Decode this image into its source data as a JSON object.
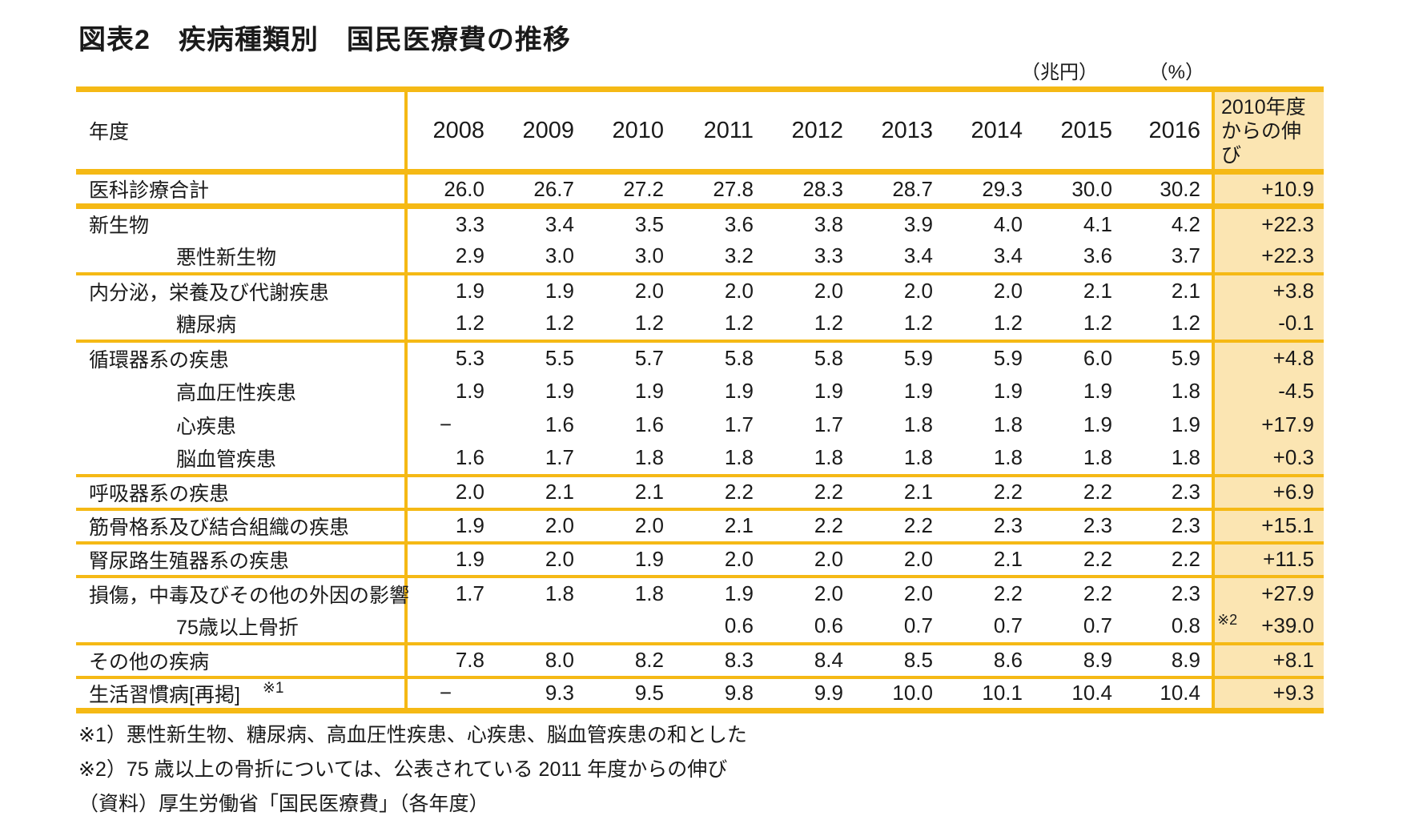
{
  "title": "図表2　疾病種類別　国民医療費の推移",
  "units": {
    "amount": "（兆円）",
    "percent": "（%）"
  },
  "table": {
    "header": {
      "year_label": "年度",
      "years": [
        "2008",
        "2009",
        "2010",
        "2011",
        "2012",
        "2013",
        "2014",
        "2015",
        "2016"
      ],
      "growth_lines": [
        "2010年度",
        "からの伸び"
      ]
    },
    "rows": [
      {
        "label": "医科診療合計",
        "indent": false,
        "values": [
          "26.0",
          "26.7",
          "27.2",
          "27.8",
          "28.3",
          "28.7",
          "29.3",
          "30.0",
          "30.2"
        ],
        "growth": "+10.9",
        "border": "thick"
      },
      {
        "label": "新生物",
        "indent": false,
        "values": [
          "3.3",
          "3.4",
          "3.5",
          "3.6",
          "3.8",
          "3.9",
          "4.0",
          "4.1",
          "4.2"
        ],
        "growth": "+22.3",
        "border": "none"
      },
      {
        "label": "悪性新生物",
        "indent": true,
        "values": [
          "2.9",
          "3.0",
          "3.0",
          "3.2",
          "3.3",
          "3.4",
          "3.4",
          "3.6",
          "3.7"
        ],
        "growth": "+22.3",
        "border": "med"
      },
      {
        "label": "内分泌，栄養及び代謝疾患",
        "indent": false,
        "values": [
          "1.9",
          "1.9",
          "2.0",
          "2.0",
          "2.0",
          "2.0",
          "2.0",
          "2.1",
          "2.1"
        ],
        "growth": "+3.8",
        "border": "none"
      },
      {
        "label": "糖尿病",
        "indent": true,
        "values": [
          "1.2",
          "1.2",
          "1.2",
          "1.2",
          "1.2",
          "1.2",
          "1.2",
          "1.2",
          "1.2"
        ],
        "growth": "-0.1",
        "border": "med"
      },
      {
        "label": "循環器系の疾患",
        "indent": false,
        "values": [
          "5.3",
          "5.5",
          "5.7",
          "5.8",
          "5.8",
          "5.9",
          "5.9",
          "6.0",
          "5.9"
        ],
        "growth": "+4.8",
        "border": "none"
      },
      {
        "label": "高血圧性疾患",
        "indent": true,
        "values": [
          "1.9",
          "1.9",
          "1.9",
          "1.9",
          "1.9",
          "1.9",
          "1.9",
          "1.9",
          "1.8"
        ],
        "growth": "-4.5",
        "border": "none"
      },
      {
        "label": "心疾患",
        "indent": true,
        "values": [
          "−",
          "1.6",
          "1.6",
          "1.7",
          "1.7",
          "1.8",
          "1.8",
          "1.9",
          "1.9"
        ],
        "growth": "+17.9",
        "border": "none"
      },
      {
        "label": "脳血管疾患",
        "indent": true,
        "values": [
          "1.6",
          "1.7",
          "1.8",
          "1.8",
          "1.8",
          "1.8",
          "1.8",
          "1.8",
          "1.8"
        ],
        "growth": "+0.3",
        "border": "med"
      },
      {
        "label": "呼吸器系の疾患",
        "indent": false,
        "values": [
          "2.0",
          "2.1",
          "2.1",
          "2.2",
          "2.2",
          "2.1",
          "2.2",
          "2.2",
          "2.3"
        ],
        "growth": "+6.9",
        "border": "med"
      },
      {
        "label": "筋骨格系及び結合組織の疾患",
        "indent": false,
        "values": [
          "1.9",
          "2.0",
          "2.0",
          "2.1",
          "2.2",
          "2.2",
          "2.3",
          "2.3",
          "2.3"
        ],
        "growth": "+15.1",
        "border": "med"
      },
      {
        "label": "腎尿路生殖器系の疾患",
        "indent": false,
        "values": [
          "1.9",
          "2.0",
          "1.9",
          "2.0",
          "2.0",
          "2.0",
          "2.1",
          "2.2",
          "2.2"
        ],
        "growth": "+11.5",
        "border": "med"
      },
      {
        "label": "損傷，中毒及びその他の外因の影響",
        "indent": false,
        "values": [
          "1.7",
          "1.8",
          "1.8",
          "1.9",
          "2.0",
          "2.0",
          "2.2",
          "2.2",
          "2.3"
        ],
        "growth": "+27.9",
        "border": "none"
      },
      {
        "label": "75歳以上骨折",
        "indent": true,
        "values": [
          "",
          "",
          "",
          "0.6",
          "0.6",
          "0.7",
          "0.7",
          "0.7",
          "0.8"
        ],
        "growth": "+39.0",
        "growth_note": "※2",
        "border": "med"
      },
      {
        "label": "その他の疾病",
        "indent": false,
        "values": [
          "7.8",
          "8.0",
          "8.2",
          "8.3",
          "8.4",
          "8.5",
          "8.6",
          "8.9",
          "8.9"
        ],
        "growth": "+8.1",
        "border": "med"
      },
      {
        "label": "生活習慣病[再掲]",
        "label_note": "※1",
        "indent": false,
        "values": [
          "−",
          "9.3",
          "9.5",
          "9.8",
          "9.9",
          "10.0",
          "10.1",
          "10.4",
          "10.4"
        ],
        "growth": "+9.3",
        "border": "none"
      }
    ]
  },
  "footnotes": [
    "※1）悪性新生物、糖尿病、高血圧性疾患、心疾患、脳血管疾患の和とした",
    "※2）75 歳以上の骨折については、公表されている 2011 年度からの伸び",
    "（資料）厚生労働省「国民医療費」（各年度）"
  ],
  "colors": {
    "gold": "#F5B915",
    "column_shade": "#FBE5B2"
  }
}
